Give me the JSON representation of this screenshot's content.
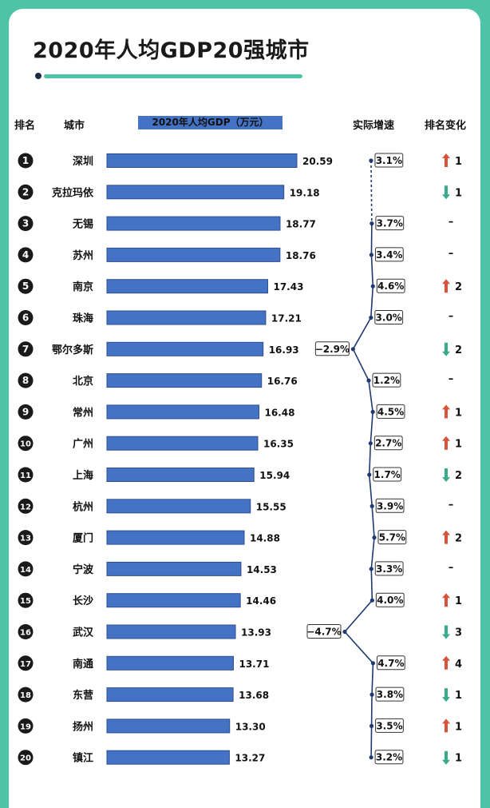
{
  "title": "2020年人均GDP20强城市",
  "headers": {
    "rank": "排名",
    "city": "城市",
    "gdp": "2020年人均GDP（万元）",
    "growth": "实际增速",
    "change": "排名变化"
  },
  "colors": {
    "bar": "#4472c4",
    "bar_border": "#2f4f8f",
    "rank_circle": "#1a1a1a",
    "up": "#d9533b",
    "down": "#3aab8a",
    "line": "#1f3a70",
    "accent": "#4fc3a8"
  },
  "chart_data": {
    "type": "bar",
    "orientation": "horizontal",
    "title": "2020年人均GDP（万元）",
    "xlim": [
      0,
      21
    ],
    "series": [
      {
        "name": "2020年人均GDP（万元）",
        "values": [
          20.59,
          19.18,
          18.77,
          18.76,
          17.43,
          17.21,
          16.93,
          16.76,
          16.48,
          16.35,
          15.94,
          15.55,
          14.88,
          14.53,
          14.46,
          13.93,
          13.71,
          13.68,
          13.3,
          13.27
        ],
        "labels": [
          "20.59",
          "19.18",
          "18.77",
          "18.76",
          "17.43",
          "17.21",
          "16.93",
          "16.76",
          "16.48",
          "16.35",
          "15.94",
          "15.55",
          "14.88",
          "14.53",
          "14.46",
          "13.93",
          "13.71",
          "13.68",
          "13.30",
          "13.27"
        ]
      },
      {
        "name": "实际增速",
        "type": "line",
        "values": [
          3.1,
          null,
          3.7,
          3.4,
          4.6,
          3.0,
          -2.9,
          1.2,
          4.5,
          2.7,
          1.7,
          3.9,
          5.7,
          3.3,
          4.0,
          -4.7,
          4.7,
          3.8,
          3.5,
          3.2
        ],
        "labels": [
          "3.1%",
          "",
          "3.7%",
          "3.4%",
          "4.6%",
          "3.0%",
          "−2.9%",
          "1.2%",
          "4.5%",
          "2.7%",
          "1.7%",
          "3.9%",
          "5.7%",
          "3.3%",
          "4.0%",
          "−4.7%",
          "4.7%",
          "3.8%",
          "3.5%",
          "3.2%"
        ]
      }
    ],
    "rows": [
      {
        "rank": "1",
        "city": "深圳",
        "change_dir": "up",
        "change": "1"
      },
      {
        "rank": "2",
        "city": "克拉玛依",
        "change_dir": "down",
        "change": "1"
      },
      {
        "rank": "3",
        "city": "无锡",
        "change_dir": "none",
        "change": "–"
      },
      {
        "rank": "4",
        "city": "苏州",
        "change_dir": "none",
        "change": "–"
      },
      {
        "rank": "5",
        "city": "南京",
        "change_dir": "up",
        "change": "2"
      },
      {
        "rank": "6",
        "city": "珠海",
        "change_dir": "none",
        "change": "–"
      },
      {
        "rank": "7",
        "city": "鄂尔多斯",
        "change_dir": "down",
        "change": "2"
      },
      {
        "rank": "8",
        "city": "北京",
        "change_dir": "none",
        "change": "–"
      },
      {
        "rank": "9",
        "city": "常州",
        "change_dir": "up",
        "change": "1"
      },
      {
        "rank": "10",
        "city": "广州",
        "change_dir": "up",
        "change": "1"
      },
      {
        "rank": "11",
        "city": "上海",
        "change_dir": "down",
        "change": "2"
      },
      {
        "rank": "12",
        "city": "杭州",
        "change_dir": "none",
        "change": "–"
      },
      {
        "rank": "13",
        "city": "厦门",
        "change_dir": "up",
        "change": "2"
      },
      {
        "rank": "14",
        "city": "宁波",
        "change_dir": "none",
        "change": "–"
      },
      {
        "rank": "15",
        "city": "长沙",
        "change_dir": "up",
        "change": "1"
      },
      {
        "rank": "16",
        "city": "武汉",
        "change_dir": "down",
        "change": "3"
      },
      {
        "rank": "17",
        "city": "南通",
        "change_dir": "up",
        "change": "4"
      },
      {
        "rank": "18",
        "city": "东营",
        "change_dir": "down",
        "change": "1"
      },
      {
        "rank": "19",
        "city": "扬州",
        "change_dir": "up",
        "change": "1"
      },
      {
        "rank": "20",
        "city": "镇江",
        "change_dir": "down",
        "change": "1"
      }
    ]
  }
}
